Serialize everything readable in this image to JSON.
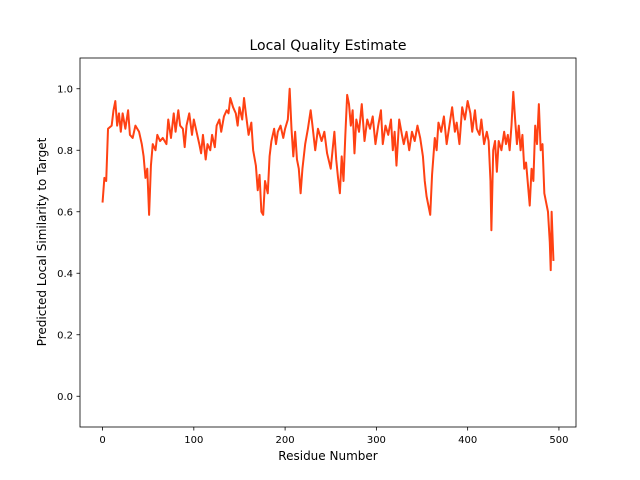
{
  "chart_data": {
    "type": "line",
    "title": "Local Quality Estimate",
    "xlabel": "Residue Number",
    "ylabel": "Predicted Local Similarity to Target",
    "xlim": [
      -24.7,
      518.7
    ],
    "ylim": [
      -0.1,
      1.1
    ],
    "xticks": [
      0,
      100,
      200,
      300,
      400,
      500
    ],
    "yticks": [
      {
        "value": 0,
        "label": "0.0"
      },
      0.2,
      0.4,
      0.6,
      0.8,
      {
        "value": 1,
        "label": "1.0"
      }
    ],
    "series": [
      {
        "color": "#ff4113",
        "x": [
          0,
          2,
          4,
          6,
          10,
          12,
          14,
          16,
          18,
          20,
          22,
          25,
          28,
          30,
          33,
          36,
          40,
          43,
          45,
          47,
          49,
          51,
          53,
          55,
          58,
          60,
          63,
          66,
          70,
          72,
          75,
          78,
          80,
          83,
          85,
          88,
          90,
          92,
          95,
          98,
          100,
          103,
          106,
          108,
          110,
          113,
          115,
          118,
          120,
          123,
          125,
          128,
          130,
          133,
          136,
          138,
          140,
          143,
          146,
          148,
          150,
          153,
          155,
          157,
          160,
          163,
          165,
          168,
          170,
          172,
          174,
          176,
          178,
          181,
          183,
          185,
          188,
          190,
          192,
          195,
          198,
          200,
          203,
          205,
          207,
          209,
          211,
          213,
          215,
          217,
          219,
          222,
          225,
          228,
          230,
          233,
          236,
          240,
          243,
          246,
          250,
          252,
          254,
          256,
          258,
          260,
          262,
          264,
          266,
          268,
          270,
          272,
          274,
          276,
          278,
          281,
          284,
          287,
          290,
          293,
          296,
          299,
          302,
          305,
          307,
          310,
          313,
          316,
          318,
          320,
          322,
          325,
          328,
          330,
          333,
          336,
          339,
          342,
          345,
          348,
          351,
          353,
          355,
          357,
          359,
          361,
          364,
          366,
          368,
          371,
          374,
          377,
          380,
          383,
          386,
          388,
          391,
          394,
          397,
          400,
          403,
          405,
          408,
          410,
          413,
          415,
          418,
          421,
          423,
          425,
          426,
          428,
          430,
          432,
          434,
          437,
          440,
          442,
          444,
          446,
          448,
          450,
          452,
          454,
          456,
          458,
          460,
          462,
          464,
          466,
          468,
          470,
          472,
          474,
          476,
          478,
          480,
          482,
          484,
          486,
          488,
          490,
          491,
          492,
          494
        ],
        "values": [
          0.63,
          0.71,
          0.7,
          0.87,
          0.88,
          0.93,
          0.96,
          0.88,
          0.92,
          0.86,
          0.92,
          0.87,
          0.93,
          0.85,
          0.84,
          0.88,
          0.86,
          0.82,
          0.78,
          0.71,
          0.74,
          0.59,
          0.75,
          0.82,
          0.8,
          0.85,
          0.83,
          0.84,
          0.82,
          0.9,
          0.84,
          0.92,
          0.86,
          0.93,
          0.88,
          0.87,
          0.81,
          0.88,
          0.92,
          0.85,
          0.9,
          0.86,
          0.82,
          0.79,
          0.85,
          0.77,
          0.82,
          0.8,
          0.85,
          0.81,
          0.88,
          0.9,
          0.86,
          0.91,
          0.93,
          0.92,
          0.97,
          0.94,
          0.92,
          0.88,
          0.94,
          0.9,
          0.97,
          0.92,
          0.85,
          0.89,
          0.8,
          0.75,
          0.67,
          0.72,
          0.6,
          0.59,
          0.7,
          0.66,
          0.78,
          0.83,
          0.87,
          0.82,
          0.86,
          0.88,
          0.84,
          0.87,
          0.9,
          1.0,
          0.87,
          0.78,
          0.86,
          0.77,
          0.74,
          0.66,
          0.74,
          0.82,
          0.87,
          0.93,
          0.88,
          0.8,
          0.87,
          0.83,
          0.86,
          0.79,
          0.74,
          0.8,
          0.86,
          0.77,
          0.71,
          0.66,
          0.78,
          0.7,
          0.85,
          0.98,
          0.95,
          0.88,
          0.93,
          0.79,
          0.9,
          0.86,
          0.95,
          0.83,
          0.9,
          0.87,
          0.91,
          0.82,
          0.88,
          0.93,
          0.82,
          0.88,
          0.85,
          0.9,
          0.8,
          0.86,
          0.75,
          0.9,
          0.85,
          0.82,
          0.86,
          0.8,
          0.86,
          0.83,
          0.88,
          0.84,
          0.78,
          0.7,
          0.65,
          0.62,
          0.59,
          0.72,
          0.84,
          0.8,
          0.89,
          0.86,
          0.91,
          0.82,
          0.88,
          0.94,
          0.86,
          0.89,
          0.82,
          0.94,
          0.9,
          0.96,
          0.92,
          0.86,
          0.93,
          0.87,
          0.85,
          0.9,
          0.82,
          0.86,
          0.83,
          0.7,
          0.54,
          0.8,
          0.83,
          0.73,
          0.83,
          0.8,
          0.86,
          0.82,
          0.85,
          0.8,
          0.88,
          0.99,
          0.9,
          0.82,
          0.88,
          0.8,
          0.85,
          0.74,
          0.76,
          0.69,
          0.62,
          0.74,
          0.7,
          0.88,
          0.82,
          0.95,
          0.8,
          0.82,
          0.66,
          0.63,
          0.6,
          0.5,
          0.41,
          0.6,
          0.44
        ]
      }
    ]
  }
}
